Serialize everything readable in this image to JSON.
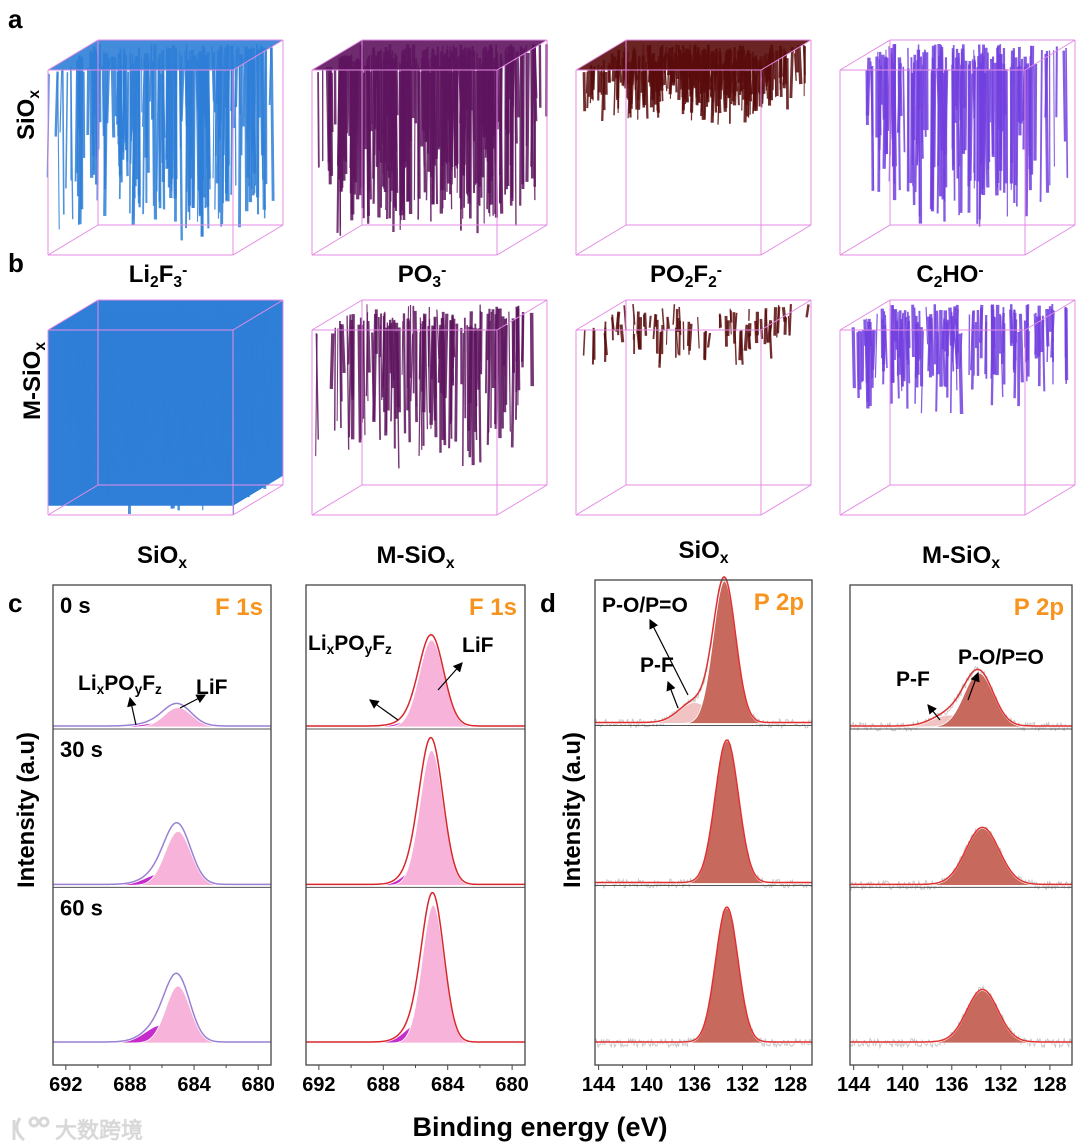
{
  "panels": {
    "a": "a",
    "b": "b",
    "c": "c",
    "d": "d"
  },
  "row_labels": [
    {
      "parts": [
        {
          "t": "SiO"
        },
        {
          "t": "x",
          "sub": true
        }
      ]
    },
    {
      "parts": [
        {
          "t": "M-SiO"
        },
        {
          "t": "x",
          "sub": true
        }
      ]
    }
  ],
  "ion_labels": [
    {
      "parts": [
        {
          "t": "Li"
        },
        {
          "t": "2",
          "sub": true
        },
        {
          "t": "F"
        },
        {
          "t": "3",
          "sub": true
        },
        {
          "t": "-",
          "sup": true
        }
      ]
    },
    {
      "parts": [
        {
          "t": "PO"
        },
        {
          "t": "3",
          "sub": true
        },
        {
          "t": "-",
          "sup": true
        }
      ]
    },
    {
      "parts": [
        {
          "t": "PO"
        },
        {
          "t": "2",
          "sub": true
        },
        {
          "t": "F"
        },
        {
          "t": "2",
          "sub": true
        },
        {
          "t": "-",
          "sup": true
        }
      ]
    },
    {
      "parts": [
        {
          "t": "C"
        },
        {
          "t": "2",
          "sub": true
        },
        {
          "t": "HO"
        },
        {
          "t": "-",
          "sup": true
        }
      ]
    }
  ],
  "ion_colors": [
    "#2f7fd8",
    "#5e145e",
    "#5a0c0c",
    "#7340e0"
  ],
  "shared_axis": {
    "xlabel": "Binding energy (eV)",
    "ylabel": "Intensity (a.u)"
  },
  "watermark": "大数跨境",
  "chart_data": [
    {
      "type": "line",
      "panel": "c",
      "title": {
        "parts": [
          {
            "t": "SiO"
          },
          {
            "t": "x",
            "sub": true
          }
        ]
      },
      "region": "F 1s",
      "xlim": [
        692.8,
        679.2
      ],
      "ticks": [
        692,
        688,
        684,
        680
      ],
      "envelope_color": "#9b7fd4",
      "rows": [
        {
          "label": "0 s",
          "components": [
            {
              "name": "LixPOyFz",
              "center": 686.0,
              "height": 0.03,
              "fwhm": 2.6
            },
            {
              "name": "LiF",
              "center": 685.0,
              "height": 0.13,
              "fwhm": 2.0
            }
          ]
        },
        {
          "label": "30 s",
          "components": [
            {
              "name": "LixPOyFz",
              "center": 686.0,
              "height": 0.08,
              "fwhm": 2.4
            },
            {
              "name": "LiF",
              "center": 685.0,
              "height": 0.36,
              "fwhm": 1.9
            }
          ]
        },
        {
          "label": "60 s",
          "components": [
            {
              "name": "LixPOyFz",
              "center": 686.0,
              "height": 0.12,
              "fwhm": 2.4
            },
            {
              "name": "LiF",
              "center": 685.0,
              "height": 0.38,
              "fwhm": 1.8
            }
          ]
        }
      ],
      "annotations": [
        {
          "parts": [
            {
              "t": "Li"
            },
            {
              "t": "x",
              "sub": true
            },
            {
              "t": "PO"
            },
            {
              "t": "y",
              "sub": true
            },
            {
              "t": "F"
            },
            {
              "t": "z",
              "sub": true
            }
          ]
        },
        {
          "parts": [
            {
              "t": "LiF"
            }
          ]
        }
      ]
    },
    {
      "type": "line",
      "panel": "c",
      "title": {
        "parts": [
          {
            "t": "M-SiO"
          },
          {
            "t": "x",
            "sub": true
          }
        ]
      },
      "region": "F 1s",
      "xlim": [
        692.8,
        679.2
      ],
      "ticks": [
        692,
        688,
        684,
        680
      ],
      "envelope_color": "#d9262b",
      "rows": [
        {
          "label": "",
          "components": [
            {
              "name": "LixPOyFz",
              "center": 686.0,
              "height": 0.05,
              "fwhm": 2.2
            },
            {
              "name": "LiF",
              "center": 685.0,
              "height": 0.58,
              "fwhm": 1.8
            }
          ]
        },
        {
          "label": "",
          "components": [
            {
              "name": "LixPOyFz",
              "center": 685.8,
              "height": 0.12,
              "fwhm": 2.0
            },
            {
              "name": "LiF",
              "center": 685.0,
              "height": 0.9,
              "fwhm": 1.7
            }
          ]
        },
        {
          "label": "",
          "components": [
            {
              "name": "LixPOyFz",
              "center": 685.8,
              "height": 0.13,
              "fwhm": 2.0
            },
            {
              "name": "LiF",
              "center": 684.9,
              "height": 0.92,
              "fwhm": 1.6
            }
          ]
        }
      ],
      "annotations": [
        {
          "parts": [
            {
              "t": "Li"
            },
            {
              "t": "x",
              "sub": true
            },
            {
              "t": "PO"
            },
            {
              "t": "y",
              "sub": true
            },
            {
              "t": "F"
            },
            {
              "t": "z",
              "sub": true
            }
          ]
        },
        {
          "parts": [
            {
              "t": "LiF"
            }
          ]
        }
      ]
    },
    {
      "type": "line",
      "panel": "d",
      "title": {
        "parts": [
          {
            "t": "SiO"
          },
          {
            "t": "x",
            "sub": true
          }
        ]
      },
      "region": "P 2p",
      "xlim": [
        144.3,
        126.2
      ],
      "ticks": [
        144,
        140,
        136,
        132,
        128
      ],
      "envelope_color": "#e03030",
      "rows": [
        {
          "label": "",
          "components": [
            {
              "name": "P-F",
              "center": 136.0,
              "height": 0.14,
              "fwhm": 3.0
            },
            {
              "name": "P-O/P=O",
              "center": 133.5,
              "height": 0.95,
              "fwhm": 2.2
            }
          ]
        },
        {
          "label": "",
          "components": [
            {
              "name": "P-F",
              "center": 136.0,
              "height": 0.0,
              "fwhm": 3.0
            },
            {
              "name": "P-O/P=O",
              "center": 133.3,
              "height": 0.95,
              "fwhm": 2.3
            }
          ]
        },
        {
          "label": "",
          "components": [
            {
              "name": "P-F",
              "center": 136.0,
              "height": 0.0,
              "fwhm": 3.0
            },
            {
              "name": "P-O/P=O",
              "center": 133.3,
              "height": 0.9,
              "fwhm": 2.2
            }
          ]
        }
      ],
      "annotations": [
        {
          "parts": [
            {
              "t": "P-O/P=O"
            }
          ]
        },
        {
          "parts": [
            {
              "t": "P-F"
            }
          ]
        }
      ]
    },
    {
      "type": "line",
      "panel": "d",
      "title": {
        "parts": [
          {
            "t": "M-SiO"
          },
          {
            "t": "x",
            "sub": true
          }
        ]
      },
      "region": "P 2p",
      "xlim": [
        144.3,
        126.2
      ],
      "ticks": [
        144,
        140,
        136,
        132,
        128
      ],
      "envelope_color": "#e03030",
      "rows": [
        {
          "label": "",
          "components": [
            {
              "name": "P-F",
              "center": 136.2,
              "height": 0.08,
              "fwhm": 3.2
            },
            {
              "name": "P-O/P=O",
              "center": 133.8,
              "height": 0.36,
              "fwhm": 2.8
            }
          ]
        },
        {
          "label": "",
          "components": [
            {
              "name": "P-F",
              "center": 136.2,
              "height": 0.0,
              "fwhm": 3.2
            },
            {
              "name": "P-O/P=O",
              "center": 133.5,
              "height": 0.38,
              "fwhm": 3.2
            }
          ]
        },
        {
          "label": "",
          "components": [
            {
              "name": "P-F",
              "center": 136.2,
              "height": 0.0,
              "fwhm": 3.2
            },
            {
              "name": "P-O/P=O",
              "center": 133.5,
              "height": 0.35,
              "fwhm": 3.0
            }
          ]
        }
      ],
      "annotations": [
        {
          "parts": [
            {
              "t": "P-F"
            }
          ]
        },
        {
          "parts": [
            {
              "t": "P-O/P=O"
            }
          ]
        }
      ]
    }
  ],
  "colors": {
    "LiF": "#f7b3d9",
    "LixPOyFz": "#c62ccb",
    "P-O/P=O": "#c8695d",
    "P-F": "#f1c3c3",
    "raw": "#c8c8c8",
    "region_label": "#f7941d",
    "cube_edge": "#e58be5"
  }
}
